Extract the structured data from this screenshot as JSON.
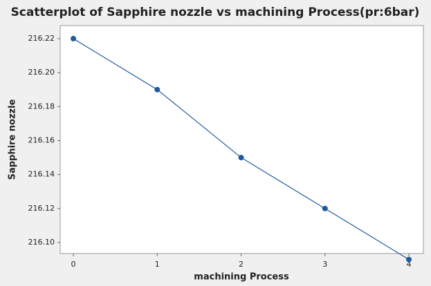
{
  "chart_data": {
    "type": "scatter",
    "title": "Scatterplot of Sapphire nozzle vs machining Process(pr:6bar)",
    "xlabel": "machining Process",
    "ylabel": "Sapphire nozzle",
    "x": [
      0,
      1,
      2,
      3,
      4
    ],
    "series": [
      {
        "name": "Sapphire nozzle",
        "color": "#1f5aa0",
        "values": [
          216.22,
          216.19,
          216.15,
          216.12,
          216.09
        ]
      }
    ],
    "connect": true,
    "xlim": [
      -0.157,
      4.173
    ],
    "xticks": [
      0,
      1,
      2,
      3,
      4
    ],
    "ylim": [
      216.0935,
      216.2277
    ],
    "yticks": [
      {
        "value": 216.1,
        "label": "216.10"
      },
      216.12,
      216.14,
      216.16,
      216.18,
      {
        "value": 216.2,
        "label": "216.20"
      },
      216.22
    ],
    "grid": false
  }
}
